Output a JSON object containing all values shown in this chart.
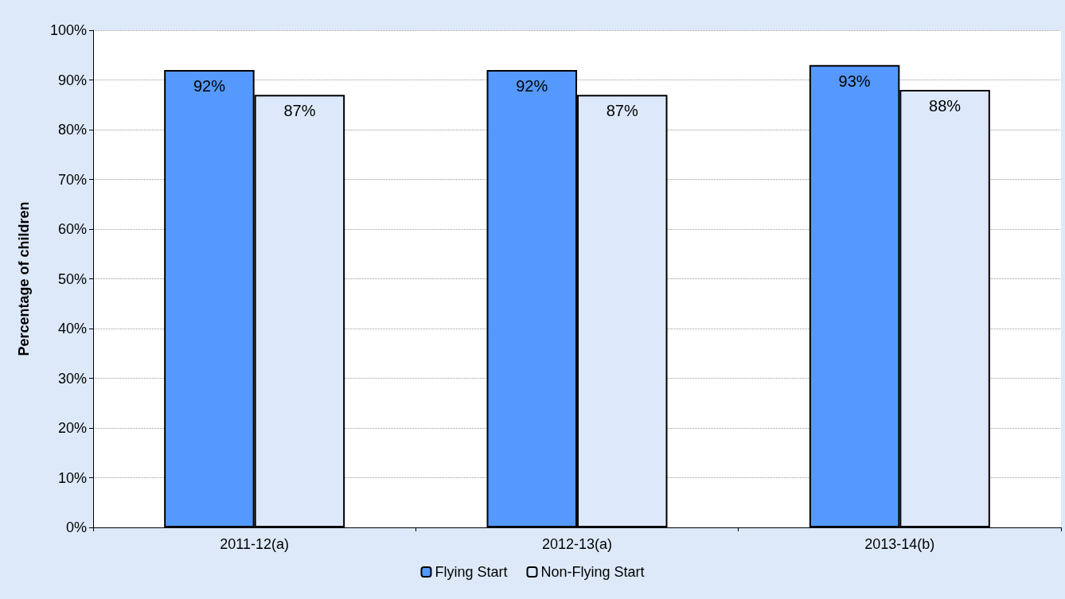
{
  "chart_data": {
    "type": "bar",
    "ylabel": "Percentage of children",
    "categories": [
      "2011-12(a)",
      "2012-13(a)",
      "2013-14(b)"
    ],
    "series": [
      {
        "name": "Flying Start",
        "color": "#5599ff",
        "values": [
          92,
          92,
          93
        ],
        "value_labels": [
          "92%",
          "92%",
          "93%"
        ]
      },
      {
        "name": "Non-Flying Start",
        "color": "#dde9fb",
        "values": [
          87,
          87,
          88
        ],
        "value_labels": [
          "87%",
          "87%",
          "88%"
        ]
      }
    ],
    "ylim": [
      0,
      100
    ],
    "yticks": [
      {
        "value": 0,
        "label": "0%"
      },
      {
        "value": 10,
        "label": "10%"
      },
      {
        "value": 20,
        "label": "20%"
      },
      {
        "value": 30,
        "label": "30%"
      },
      {
        "value": 40,
        "label": "40%"
      },
      {
        "value": 50,
        "label": "50%"
      },
      {
        "value": 60,
        "label": "60%"
      },
      {
        "value": 70,
        "label": "70%"
      },
      {
        "value": 80,
        "label": "80%"
      },
      {
        "value": 90,
        "label": "90%"
      },
      {
        "value": 100,
        "label": "100%"
      }
    ],
    "grid": "y",
    "legend": "bottom"
  }
}
